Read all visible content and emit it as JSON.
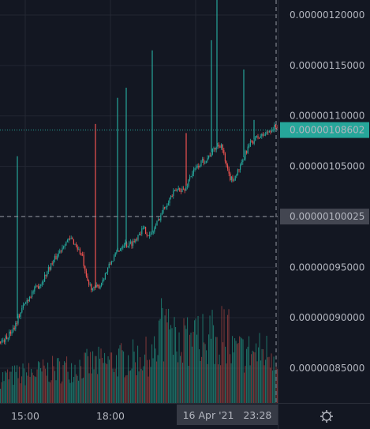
{
  "colors": {
    "background": "#131722",
    "grid": "#232733",
    "up": "#26a69a",
    "down": "#ef5350",
    "volume_up": "#1f7a6f",
    "volume_down": "#8a3b3b",
    "current_price_bg": "#26a69a",
    "crosshair_price_bg": "#434651",
    "time_badge_bg": "#363a45",
    "text": "#b2b5be"
  },
  "toolbar": {
    "settings_icon": "gear-icon"
  },
  "chart_data": {
    "type": "candlestick",
    "title": "",
    "xlabel": "",
    "ylabel": "",
    "grid": true,
    "price_axis_side": "right",
    "ylim": [
      8.2e-07,
      1.215e-06
    ],
    "y_ticks": [
      "0.00000120000",
      "0.00000115000",
      "0.00000110000",
      "0.00000105000",
      "0.00000100000",
      "0.00000095000",
      "0.00000090000",
      "0.00000085000"
    ],
    "y_tick_values": [
      1.2e-06,
      1.15e-06,
      1.1e-06,
      1.05e-06,
      1e-06,
      9.5e-07,
      9e-07,
      8.5e-07
    ],
    "x_ticks": [
      "15:00",
      "18:00"
    ],
    "current_price": "0.00000108602",
    "current_price_value": 1.08602e-06,
    "crosshair_price": "0.00000100025",
    "crosshair_price_value": 1.00025e-06,
    "crosshair_time": "16 Apr '21   23:28",
    "series": [
      {
        "name": "",
        "trend_x": [
          0,
          8,
          18,
          28,
          40,
          52,
          62,
          72,
          82,
          90,
          97,
          104,
          108,
          112,
          118,
          126,
          132,
          140,
          148,
          156,
          162,
          170,
          176,
          182,
          190,
          196,
          202,
          208,
          214,
          220,
          226,
          234,
          240,
          246,
          250,
          256,
          262,
          268,
          274,
          280,
          286,
          290,
          294,
          300,
          306,
          312,
          318,
          324,
          330,
          336,
          342,
          350
        ],
        "trend_y": [
          8.76e-07,
          8.8e-07,
          8.92e-07,
          9.1e-07,
          9.25e-07,
          9.35e-07,
          9.5e-07,
          9.62e-07,
          9.75e-07,
          9.78e-07,
          9.7e-07,
          9.6e-07,
          9.4e-07,
          9.33e-07,
          9.28e-07,
          9.32e-07,
          9.42e-07,
          9.55e-07,
          9.65e-07,
          9.74e-07,
          9.72e-07,
          9.76e-07,
          9.85e-07,
          9.88e-07,
          9.8e-07,
          9.9e-07,
          1e-06,
          1.01e-06,
          1.018e-06,
          1.024e-06,
          1.028e-06,
          1.026e-06,
          1.04e-06,
          1.046e-06,
          1.05e-06,
          1.055e-06,
          1.058e-06,
          1.064e-06,
          1.07e-06,
          1.072e-06,
          1.05e-06,
          1.04e-06,
          1.036e-06,
          1.044e-06,
          1.052e-06,
          1.066e-06,
          1.074e-06,
          1.078e-06,
          1.08e-06,
          1.082e-06,
          1.086e-06,
          1.09e-06
        ],
        "spikes": [
          {
            "x": 22,
            "high": 1.06e-06,
            "dir": "up"
          },
          {
            "x": 121,
            "high": 1.092e-06,
            "dir": "down"
          },
          {
            "x": 149,
            "high": 1.118e-06,
            "dir": "up"
          },
          {
            "x": 160,
            "high": 1.128e-06,
            "dir": "up"
          },
          {
            "x": 193,
            "high": 1.165e-06,
            "dir": "up"
          },
          {
            "x": 236,
            "high": 1.083e-06,
            "dir": "down"
          },
          {
            "x": 268,
            "high": 1.175e-06,
            "dir": "up"
          },
          {
            "x": 275,
            "high": 1.215e-06,
            "dir": "up"
          },
          {
            "x": 309,
            "high": 1.146e-06,
            "dir": "up"
          },
          {
            "x": 322,
            "high": 1.096e-06,
            "dir": "up"
          }
        ]
      }
    ]
  }
}
